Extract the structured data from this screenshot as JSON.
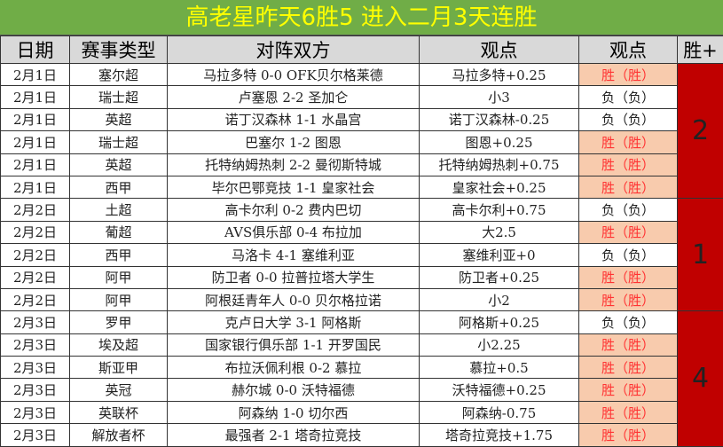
{
  "title": "高老星昨天6胜5  进入二月3天连胜",
  "headers": [
    "日期",
    "赛事类型",
    "对阵双方",
    "观点",
    "观点",
    "胜+"
  ],
  "colors": {
    "title_bg": "#70ad47",
    "title_text": "#ffff00",
    "win_bg": "#f8cbad",
    "win_text": "#ff3333",
    "sum_bg": "#c00000",
    "header_bg": "#d9d9d9"
  },
  "rows": [
    {
      "date": "2月1日",
      "league": "塞尔超",
      "match": "马拉多特 0-0 OFK贝尔格莱德",
      "pick": "马拉多特+0.25",
      "result": "胜（胜）",
      "win": true
    },
    {
      "date": "2月1日",
      "league": "瑞士超",
      "match": "卢塞恩 2-2 圣加仑",
      "pick": "小3",
      "result": "负（负）",
      "win": false
    },
    {
      "date": "2月1日",
      "league": "英超",
      "match": "诺丁汉森林 1-1 水晶宫",
      "pick": "诺丁汉森林-0.25",
      "result": "负（负）",
      "win": false
    },
    {
      "date": "2月1日",
      "league": "瑞士超",
      "match": "巴塞尔 1-2 图恩",
      "pick": "图恩+0.25",
      "result": "胜（胜）",
      "win": true
    },
    {
      "date": "2月1日",
      "league": "英超",
      "match": "托特纳姆热刺 2-2 曼彻斯特城",
      "pick": "托特纳姆热刺+0.75",
      "result": "胜（胜）",
      "win": true
    },
    {
      "date": "2月1日",
      "league": "西甲",
      "match": "毕尔巴鄂竞技 1-1 皇家社会",
      "pick": "皇家社会+0.25",
      "result": "胜（胜）",
      "win": true
    },
    {
      "date": "2月2日",
      "league": "土超",
      "match": "高卡尔利 0-2 费内巴切",
      "pick": "高卡尔利+0.75",
      "result": "负（负）",
      "win": false
    },
    {
      "date": "2月2日",
      "league": "葡超",
      "match": "AVS俱乐部 0-4 布拉加",
      "pick": "大2.5",
      "result": "胜（胜）",
      "win": true
    },
    {
      "date": "2月2日",
      "league": "西甲",
      "match": "马洛卡 4-1 塞维利亚",
      "pick": "塞维利亚+0",
      "result": "负（负）",
      "win": false
    },
    {
      "date": "2月2日",
      "league": "阿甲",
      "match": "防卫者 0-0 拉普拉塔大学生",
      "pick": "防卫者+0.25",
      "result": "胜（胜）",
      "win": true
    },
    {
      "date": "2月2日",
      "league": "阿甲",
      "match": "阿根廷青年人 0-0 贝尔格拉诺",
      "pick": "小2",
      "result": "胜（胜）",
      "win": true
    },
    {
      "date": "2月3日",
      "league": "罗甲",
      "match": "克卢日大学 3-1 阿格斯",
      "pick": "阿格斯+0.25",
      "result": "负（负）",
      "win": false
    },
    {
      "date": "2月3日",
      "league": "埃及超",
      "match": "国家银行俱乐部 1-1 开罗国民",
      "pick": "小2.25",
      "result": "胜（胜）",
      "win": true
    },
    {
      "date": "2月3日",
      "league": "斯亚甲",
      "match": "布拉沃佩利根 0-2 慕拉",
      "pick": "慕拉+0.5",
      "result": "胜（胜）",
      "win": true
    },
    {
      "date": "2月3日",
      "league": "英冠",
      "match": "赫尔城 0-0 沃特福德",
      "pick": "沃特福德+0.25",
      "result": "胜（胜）",
      "win": true
    },
    {
      "date": "2月3日",
      "league": "英联杯",
      "match": "阿森纳 1-0 切尔西",
      "pick": "阿森纳-0.75",
      "result": "胜（胜）",
      "win": true
    },
    {
      "date": "2月3日",
      "league": "解放者杯",
      "match": "最强者 2-1 塔奇拉竞技",
      "pick": "塔奇拉竞技+1.75",
      "result": "胜（胜）",
      "win": true
    }
  ],
  "groups": [
    {
      "start": 0,
      "count": 6,
      "value": "2"
    },
    {
      "start": 6,
      "count": 5,
      "value": "1"
    },
    {
      "start": 11,
      "count": 6,
      "value": "4"
    }
  ]
}
